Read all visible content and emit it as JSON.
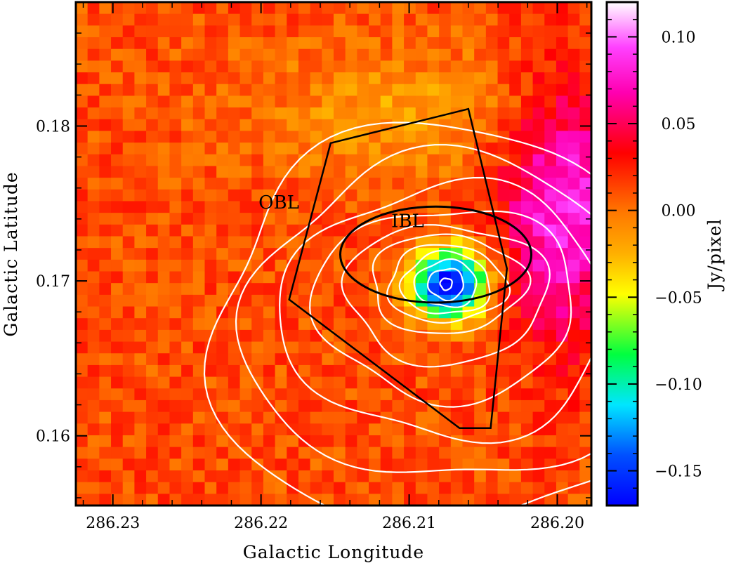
{
  "chart_data": {
    "type": "heatmap",
    "title": "",
    "xlabel": "Galactic Longitude",
    "ylabel": "Galactic Latitude",
    "colorbar_label": "Jy/pixel",
    "xlim": [
      286.2325,
      286.1977
    ],
    "ylim": [
      0.1555,
      0.188
    ],
    "x_ticks": [
      {
        "value": 286.23,
        "label": "286.23"
      },
      {
        "value": 286.22,
        "label": "286.22"
      },
      {
        "value": 286.21,
        "label": "286.21"
      },
      {
        "value": 286.2,
        "label": "286.20"
      }
    ],
    "y_ticks": [
      {
        "value": 0.16,
        "label": "0.16"
      },
      {
        "value": 0.17,
        "label": "0.17"
      },
      {
        "value": 0.18,
        "label": "0.18"
      }
    ],
    "colorbar_range": [
      -0.17,
      0.12
    ],
    "colorbar_ticks": [
      {
        "value": 0.1,
        "label": "0.10"
      },
      {
        "value": 0.05,
        "label": "0.05"
      },
      {
        "value": 0.0,
        "label": "0.00"
      },
      {
        "value": -0.05,
        "label": "−0.05"
      },
      {
        "value": -0.1,
        "label": "−0.10"
      },
      {
        "value": -0.15,
        "label": "−0.15"
      }
    ],
    "field": {
      "background": 0.012,
      "absorption": {
        "center": [
          286.2073,
          0.1698
        ],
        "amplitude": -0.185,
        "sigma": [
          0.0018,
          0.0016
        ]
      },
      "emission": {
        "center": [
          286.1995,
          0.1748
        ],
        "amplitude": 0.075,
        "sigma": [
          0.003,
          0.006
        ]
      },
      "ridge": {
        "center": [
          286.21,
          0.181
        ],
        "amplitude": -0.028,
        "sigma": [
          0.008,
          0.003
        ]
      }
    },
    "contours": {
      "center": [
        286.2075,
        0.1698
      ],
      "levels": [
        [
          0.0004,
          0.00038
        ],
        [
          0.0012,
          0.001
        ],
        [
          0.0021,
          0.0015
        ],
        [
          0.003,
          0.002
        ],
        [
          0.004,
          0.0025
        ],
        [
          0.0052,
          0.0032
        ],
        [
          0.0068,
          0.0045
        ],
        [
          0.0088,
          0.0062
        ],
        [
          0.011,
          0.0082
        ],
        [
          0.0135,
          0.0105
        ],
        [
          0.016,
          0.013
        ]
      ]
    },
    "regions": [
      {
        "label": "IBL",
        "shape": "ellipse",
        "center": [
          286.2082,
          0.1717
        ],
        "semi_axes": [
          0.00645,
          0.0031
        ],
        "label_pos": [
          286.2101,
          0.1738
        ]
      },
      {
        "label": "OBL",
        "shape": "polygon",
        "points": [
          [
            286.2153,
            0.1789
          ],
          [
            286.206,
            0.1811
          ],
          [
            286.2034,
            0.1708
          ],
          [
            286.2045,
            0.1605
          ],
          [
            286.2066,
            0.1605
          ],
          [
            286.2181,
            0.1688
          ]
        ],
        "label_pos": [
          286.2188,
          0.175
        ]
      }
    ]
  },
  "colors": {
    "contour": "#ffffff",
    "region_outline": "#000000",
    "frame": "#000000"
  }
}
